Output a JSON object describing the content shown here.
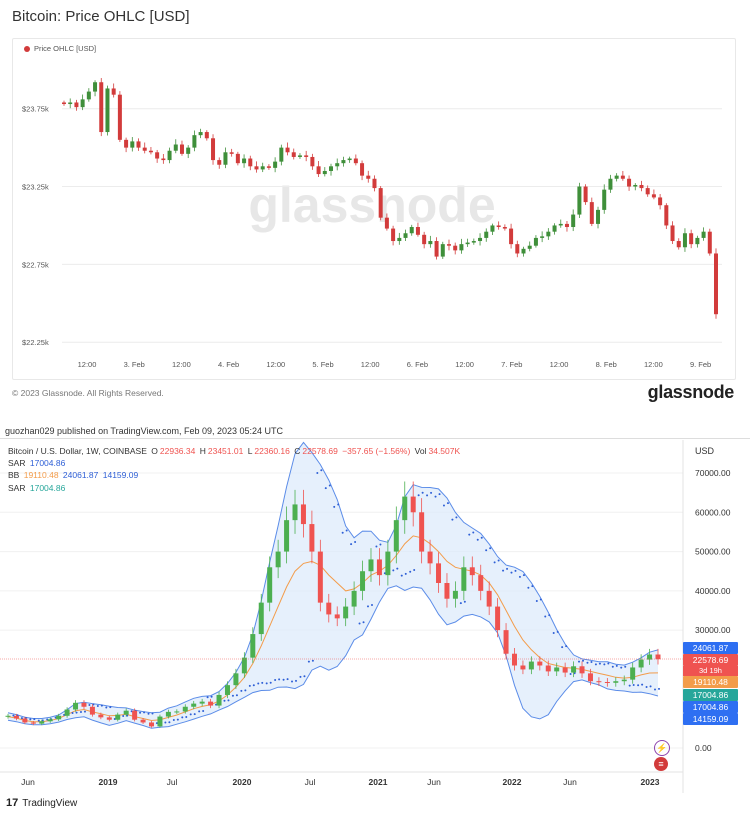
{
  "glassnode": {
    "title": "Bitcoin: Price OHLC [USD]",
    "legend": "Price OHLC [USD]",
    "watermark": "glassnode",
    "copyright": "© 2023 Glassnode. All Rights Reserved.",
    "logo": "glassnode",
    "colors": {
      "up": "#3f8f3a",
      "down": "#d23b3b"
    }
  },
  "chart_data": [
    {
      "type": "candlestick",
      "title": "Bitcoin: Price OHLC [USD]",
      "series": [
        {
          "name": "Price OHLC [USD]"
        }
      ],
      "y_ticks": [
        "$23.75k",
        "$23.25k",
        "$22.75k",
        "$22.25k"
      ],
      "y_tick_values": [
        23750,
        23250,
        22750,
        22250
      ],
      "ylim": [
        22200,
        24050
      ],
      "x_ticks": [
        "12:00",
        "3. Feb",
        "12:00",
        "4. Feb",
        "12:00",
        "5. Feb",
        "12:00",
        "6. Feb",
        "12:00",
        "7. Feb",
        "12:00",
        "8. Feb",
        "12:00",
        "9. Feb"
      ],
      "close_path": [
        23780,
        23790,
        23760,
        23810,
        23860,
        23920,
        23600,
        23880,
        23840,
        23550,
        23500,
        23540,
        23500,
        23480,
        23470,
        23430,
        23420,
        23480,
        23520,
        23460,
        23500,
        23580,
        23600,
        23560,
        23420,
        23390,
        23470,
        23460,
        23400,
        23430,
        23380,
        23360,
        23380,
        23370,
        23410,
        23500,
        23470,
        23440,
        23450,
        23440,
        23380,
        23330,
        23350,
        23380,
        23400,
        23420,
        23430,
        23400,
        23320,
        23300,
        23240,
        23050,
        22980,
        22900,
        22920,
        22950,
        22990,
        22940,
        22880,
        22900,
        22800,
        22880,
        22870,
        22840,
        22880,
        22890,
        22900,
        22920,
        22960,
        23000,
        22990,
        22980,
        22880,
        22820,
        22850,
        22870,
        22920,
        22930,
        22960,
        23000,
        23010,
        22990,
        23070,
        23250,
        23150,
        23010,
        23100,
        23230,
        23300,
        23320,
        23300,
        23250,
        23260,
        23240,
        23200,
        23180,
        23130,
        23000,
        22900,
        22860,
        22950,
        22880,
        22920,
        22960,
        22820,
        22430
      ],
      "legend_position": "top-left"
    },
    {
      "type": "candlestick",
      "title": "Bitcoin / U.S. Dollar, 1W, COINBASE",
      "ohlc": {
        "open": "22936.34",
        "high": "23451.01",
        "low": "22360.16",
        "close": "22578.69",
        "change": "−357.65 (−1.56%)",
        "volume": "34.507K"
      },
      "series": [
        {
          "name": "SAR",
          "value": "17004.86"
        },
        {
          "name": "BB",
          "values": [
            "19110.48",
            "24061.87",
            "14159.09"
          ]
        },
        {
          "name": "SAR",
          "value": "17004.86"
        }
      ],
      "y_ticks": [
        "70000.00",
        "60000.00",
        "50000.00",
        "40000.00",
        "30000.00",
        "0.00"
      ],
      "y_tick_values": [
        70000,
        60000,
        50000,
        40000,
        30000,
        0
      ],
      "x_ticks": [
        "Jun",
        "2019",
        "Jul",
        "2020",
        "Jul",
        "2021",
        "Jun",
        "2022",
        "Jun",
        "2023"
      ],
      "close_path": [
        8200,
        7500,
        6500,
        6200,
        6800,
        7300,
        8200,
        9800,
        11500,
        10500,
        8500,
        7800,
        7200,
        8500,
        9500,
        7200,
        6500,
        5500,
        8000,
        9200,
        9300,
        10500,
        11300,
        11800,
        10800,
        13500,
        16000,
        19000,
        23000,
        29000,
        37000,
        46000,
        50000,
        58000,
        62000,
        57000,
        50000,
        37000,
        34000,
        33000,
        36000,
        40000,
        45000,
        48000,
        44000,
        50000,
        58000,
        64000,
        60000,
        50000,
        47000,
        42000,
        38000,
        40000,
        46000,
        44000,
        40000,
        36000,
        30000,
        24000,
        21000,
        20000,
        22000,
        21000,
        19500,
        20500,
        19200,
        20800,
        19000,
        17000,
        16800,
        16600,
        17000,
        17400,
        20500,
        22500,
        23800,
        22600
      ],
      "bb_mid": [
        8000,
        7600,
        7000,
        6700,
        6700,
        7000,
        7500,
        8500,
        9500,
        9800,
        9200,
        8700,
        8200,
        8300,
        8600,
        8000,
        7500,
        7000,
        7200,
        7800,
        8400,
        9200,
        10000,
        10600,
        11000,
        12000,
        13500,
        15500,
        18000,
        21500,
        26000,
        31000,
        36000,
        41000,
        45000,
        47000,
        47500,
        46500,
        44000,
        42000,
        40000,
        40500,
        42000,
        44000,
        45000,
        46500,
        49000,
        52000,
        54000,
        53500,
        52000,
        50000,
        47500,
        46000,
        45500,
        45000,
        44000,
        42000,
        39000,
        35000,
        31000,
        27500,
        25000,
        23000,
        21500,
        21000,
        20500,
        20300,
        20000,
        19500,
        19000,
        18500,
        18000,
        17800,
        18000,
        18600,
        19100,
        19110
      ],
      "legend_position": "top-left"
    }
  ],
  "tradingview": {
    "published": "guozhan029 published on TradingView.com, Feb 09, 2023 05:24 UTC",
    "symbol": "Bitcoin / U.S. Dollar, 1W, COINBASE",
    "o_label": "O",
    "o": "22936.34",
    "h_label": "H",
    "h": "23451.01",
    "l_label": "L",
    "l": "22360.16",
    "c_label": "C",
    "c": "22578.69",
    "chg": "−357.65 (−1.56%)",
    "vol_label": "Vol",
    "vol": "34.507K",
    "sar1_label": "SAR",
    "sar1": "17004.86",
    "bb_label": "BB",
    "bb_mid": "19110.48",
    "bb_up": "24061.87",
    "bb_low": "14159.09",
    "sar2_label": "SAR",
    "sar2": "17004.86",
    "currency": "USD",
    "tags": {
      "upper": "24061.87",
      "price": "22578.69",
      "countdown": "3d 19h",
      "mid": "19110.48",
      "sar_a": "17004.86",
      "sar_b": "17004.86",
      "lower": "14159.09"
    },
    "logo": "TradingView",
    "colors": {
      "up": "#4caf50",
      "down": "#ef5350",
      "bb": "#5b8ce8",
      "bbfill": "#dbe9fb",
      "basis": "#f39c4a",
      "sar": "#2e5fd6"
    }
  }
}
